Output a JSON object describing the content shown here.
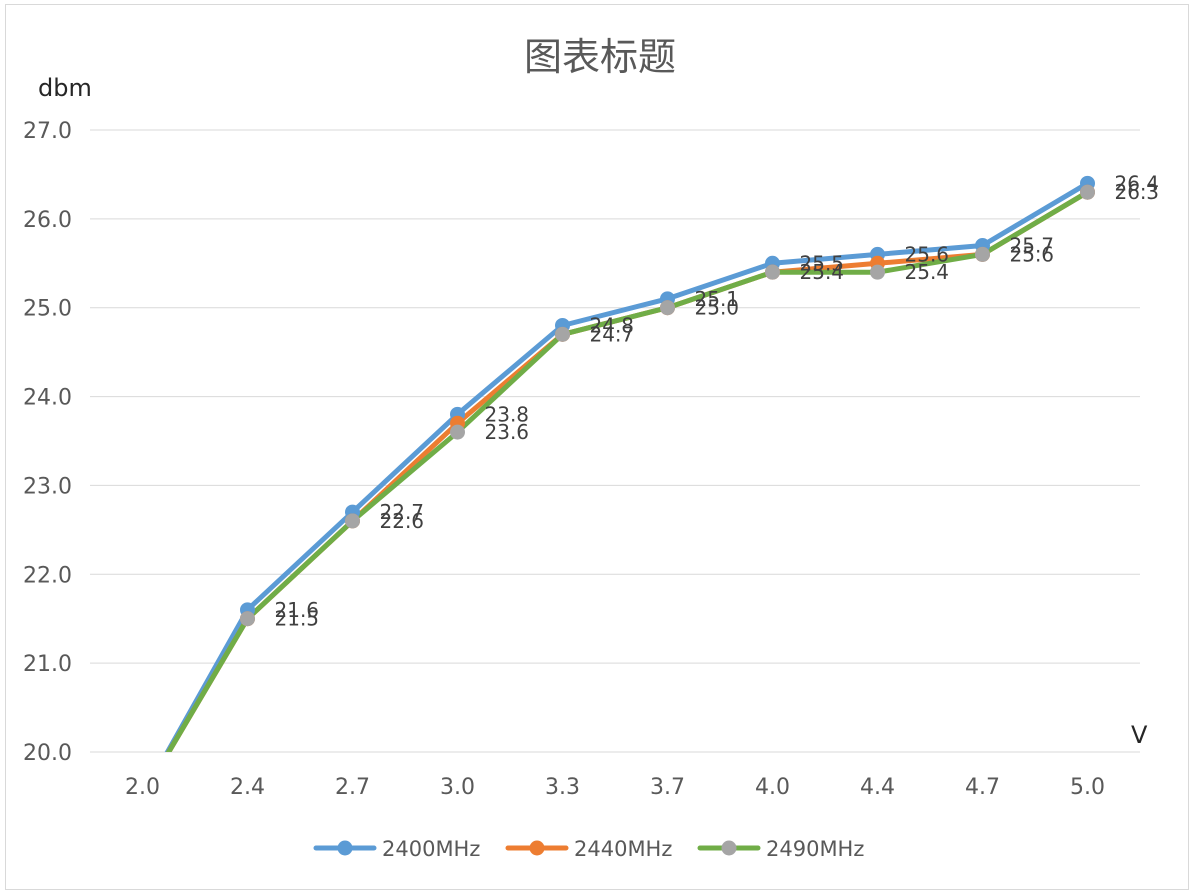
{
  "chart_data": {
    "type": "line",
    "title": "图表标题",
    "ylabel": "dbm",
    "xlabel": "V",
    "ylim": [
      20.0,
      27.0
    ],
    "yticks": [
      "20.0",
      "21.0",
      "22.0",
      "23.0",
      "24.0",
      "25.0",
      "26.0",
      "27.0"
    ],
    "categories": [
      "2.0",
      "2.4",
      "2.7",
      "3.0",
      "3.3",
      "3.7",
      "4.0",
      "4.4",
      "4.7",
      "5.0"
    ],
    "grid": true,
    "legend_position": "bottom",
    "series": [
      {
        "name": "2400MHz",
        "color": "#5B9BD5",
        "values": [
          19.5,
          21.6,
          22.7,
          23.8,
          24.8,
          25.1,
          25.5,
          25.6,
          25.7,
          26.4
        ],
        "labels": [
          "",
          "21.6",
          "22.7",
          "23.8",
          "24.8",
          "25.1",
          "25.5",
          "25.6",
          "25.7",
          "26.4"
        ]
      },
      {
        "name": "2440MHz",
        "color": "#ED7D31",
        "values": [
          19.5,
          21.5,
          22.6,
          23.7,
          24.7,
          25.0,
          25.4,
          25.5,
          25.6,
          26.3
        ],
        "labels": []
      },
      {
        "name": "2490MHz",
        "color": "#A5A5A5",
        "line_color": "#70AD47",
        "values": [
          19.5,
          21.5,
          22.6,
          23.6,
          24.7,
          25.0,
          25.4,
          25.4,
          25.6,
          26.3
        ],
        "labels": [
          "",
          "21.5",
          "22.6",
          "23.6",
          "24.7",
          "25.0",
          "25.4",
          "25.4",
          "25.6",
          "26.3"
        ]
      }
    ]
  }
}
